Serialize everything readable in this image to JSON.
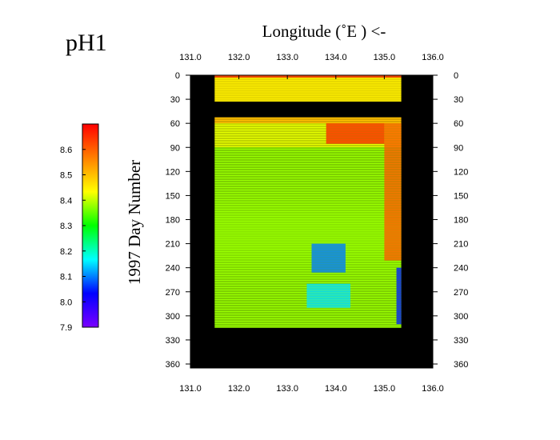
{
  "chart_data": {
    "type": "heatmap",
    "title": "pH1",
    "xlabel": "Longitude (˚E ) <-",
    "ylabel": "1997   Day  Number",
    "xlim": [
      131.0,
      136.0
    ],
    "ylim": [
      0,
      365
    ],
    "y_inverted": true,
    "x_ticks": [
      "131.0",
      "132.0",
      "133.0",
      "134.0",
      "135.0",
      "136.0"
    ],
    "y_ticks": [
      "0",
      "30",
      "60",
      "90",
      "120",
      "150",
      "180",
      "210",
      "240",
      "270",
      "300",
      "330",
      "360"
    ],
    "colorbar": {
      "range": [
        7.9,
        8.7
      ],
      "tick_labels": [
        "8.6",
        "8.5",
        "8.4",
        "8.3",
        "8.2",
        "8.1",
        "8.0",
        "7.9"
      ],
      "tick_values": [
        8.6,
        8.5,
        8.4,
        8.3,
        8.2,
        8.1,
        8.0,
        7.9
      ],
      "colors": [
        "#7a00ff",
        "#0000ff",
        "#00ffff",
        "#00ff00",
        "#ffff00",
        "#ff8000",
        "#ff0000"
      ]
    },
    "background_color": "#000000",
    "data_extent": {
      "lon_range": [
        131.5,
        135.35
      ],
      "day_range": [
        0,
        314
      ]
    },
    "gap_days": [
      32,
      52
    ],
    "colormap_field": [
      {
        "days": [
          0,
          3
        ],
        "value": 8.62
      },
      {
        "days": [
          3,
          32
        ],
        "value": 8.45
      },
      {
        "days": [
          52,
          60
        ],
        "value": 8.5
      },
      {
        "days": [
          60,
          90
        ],
        "value": 8.42
      },
      {
        "days": [
          90,
          314
        ],
        "value": 8.38
      }
    ],
    "features": [
      {
        "name": "high_pH_patch",
        "lon": [
          133.8,
          135.0
        ],
        "days": [
          60,
          85
        ],
        "value": 8.65
      },
      {
        "name": "low_pH_patch",
        "lon": [
          133.5,
          134.2
        ],
        "days": [
          210,
          245
        ],
        "value": 8.1
      },
      {
        "name": "low_pH_patch",
        "lon": [
          133.4,
          134.3
        ],
        "days": [
          260,
          290
        ],
        "value": 8.15
      },
      {
        "name": "east_edge_high",
        "lon": [
          135.0,
          135.35
        ],
        "days": [
          60,
          230
        ],
        "value": 8.6
      },
      {
        "name": "east_edge_low",
        "lon": [
          135.25,
          135.35
        ],
        "days": [
          240,
          310
        ],
        "value": 8.05
      }
    ]
  }
}
